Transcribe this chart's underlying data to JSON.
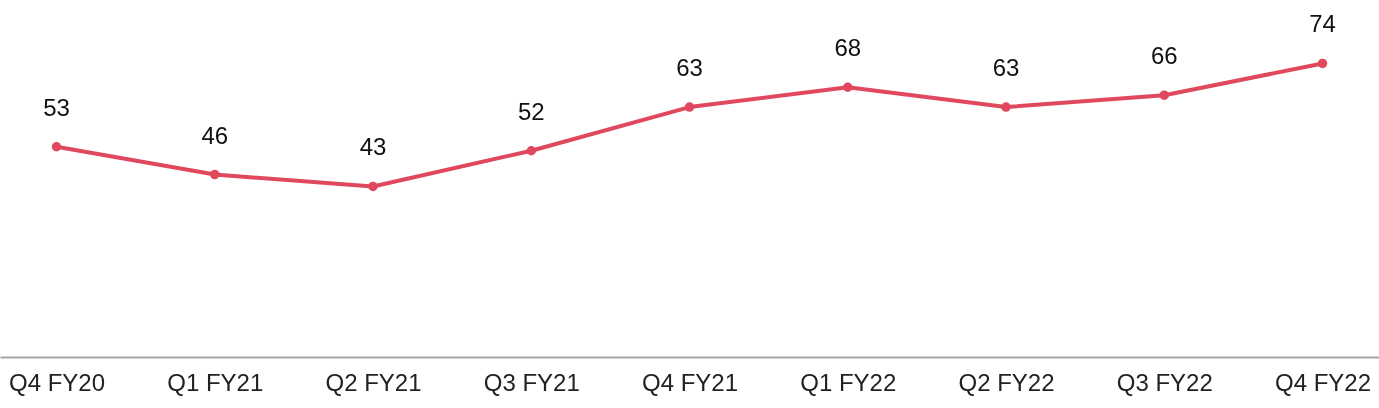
{
  "chart_data": {
    "type": "line",
    "categories": [
      "Q4 FY20",
      "Q1 FY21",
      "Q2 FY21",
      "Q3 FY21",
      "Q4 FY21",
      "Q1 FY22",
      "Q2 FY22",
      "Q3 FY22",
      "Q4 FY22"
    ],
    "series": [
      {
        "color": "#e0485e",
        "values": [
          53,
          46,
          43,
          52,
          63,
          68,
          63,
          66,
          74
        ]
      }
    ],
    "ylim": [
      0,
      90
    ],
    "data_labels": true,
    "marker": "circle"
  }
}
